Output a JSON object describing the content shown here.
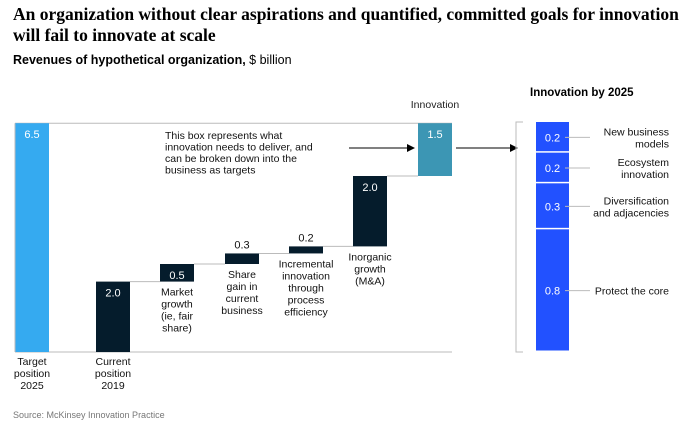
{
  "title": "An organization without clear aspirations and quantified, committed goals for innovation will fail to innovate at scale",
  "subtitle_bold": "Revenues of hypothetical organization,",
  "subtitle_unit": " $ billion",
  "source": "Source: McKinsey Innovation Practice",
  "chart_data": [
    {
      "type": "bar",
      "subtype": "waterfall",
      "categories": [
        [
          "Target",
          "position",
          "2025"
        ],
        [
          "Current",
          "position",
          "2019"
        ],
        [
          "Market",
          "growth",
          "(ie, fair",
          "share)"
        ],
        [
          "Share",
          "gain in",
          "current",
          "business"
        ],
        [
          "Incremental",
          "innovation",
          "through",
          "process",
          "efficiency"
        ],
        [
          "Inorganic",
          "growth",
          "(M&A)"
        ],
        []
      ],
      "values": [
        6.5,
        2.0,
        0.5,
        0.3,
        0.2,
        2.0,
        1.5
      ],
      "labels": [
        "6.5",
        "2.0",
        "0.5",
        "0.3",
        "0.2",
        "2.0",
        "1.5"
      ],
      "bar_kind": [
        "total",
        "total",
        "step",
        "step",
        "step",
        "step",
        "gap"
      ],
      "colors": [
        "#35aaf0",
        "#051c2c",
        "#051c2c",
        "#051c2c",
        "#051c2c",
        "#051c2c",
        "#3c96b4"
      ],
      "gap_label": "Innovation",
      "annotation": [
        "This box represents what",
        "innovation needs to deliver, and",
        "can be broken down into the",
        "business as targets"
      ],
      "ylim": [
        0,
        6.5
      ]
    },
    {
      "type": "bar",
      "subtype": "stacked",
      "title": "Innovation by 2025",
      "categories": [
        [
          "New business",
          "models"
        ],
        [
          "Ecosystem",
          "innovation"
        ],
        [
          "Diversification",
          "and adjacencies"
        ],
        [
          "Protect the core"
        ]
      ],
      "values": [
        0.2,
        0.2,
        0.3,
        0.8
      ],
      "labels": [
        "0.2",
        "0.2",
        "0.3",
        "0.8"
      ],
      "color": "#2251ff"
    }
  ]
}
